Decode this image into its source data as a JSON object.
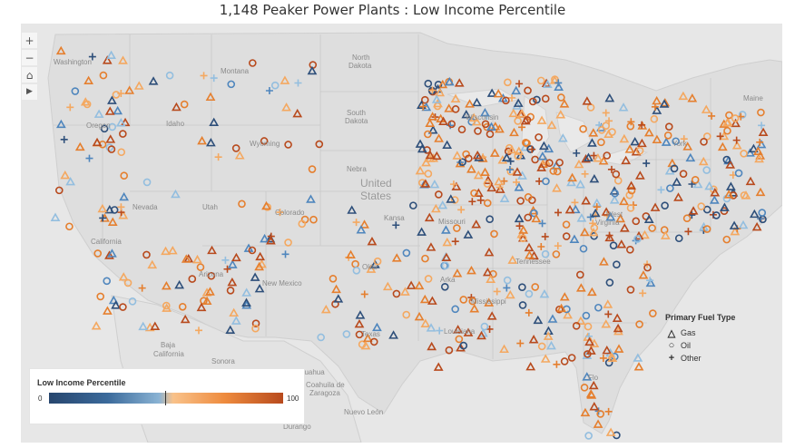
{
  "title": "1,148 Peaker Power Plants : Low Income Percentile",
  "map_controls": [
    {
      "name": "zoom-in-button",
      "symbol": "+"
    },
    {
      "name": "zoom-out-button",
      "symbol": "−"
    },
    {
      "name": "home-button",
      "symbol": "⌂"
    },
    {
      "name": "pan-button",
      "symbol": "▶"
    }
  ],
  "place_labels": {
    "washington": "Washington",
    "montana": "Montana",
    "north_dakota_1": "North",
    "north_dakota_2": "Dakota",
    "oregon": "Oregon",
    "idaho": "Idaho",
    "south_dakota_1": "South",
    "south_dakota_2": "Dakota",
    "wyoming": "Wyoming",
    "nebraska": "Nebra",
    "united_states_1": "United",
    "united_states_2": "States",
    "nevada": "Nevada",
    "utah": "Utah",
    "colorado": "Colorado",
    "california": "California",
    "arizona": "Arizona",
    "new_mexico": "New Mexico",
    "texas": "Texas",
    "oklahoma": "Okla",
    "kansas": "Kansa",
    "missouri": "Missouri",
    "arkansas": "Arka",
    "mississippi": "Mississippi",
    "louisiana": "Louisiana",
    "tennessee": "Tennessee",
    "west_virginia_1": "West",
    "west_virginia_2": "Virginia",
    "wisconsin": "Wisconsin",
    "new_york": "York",
    "maine": "Maine",
    "florida": "Flo",
    "baja_california_1": "Baja",
    "baja_california_2": "California",
    "sonora": "Sonora",
    "chihuahua": "Chihuahua",
    "coahuila_1": "Coahuila de",
    "coahuila_2": "Zaragoza",
    "durango": "Durango",
    "nuevo_leon": "Nuevo León"
  },
  "fuel_legend": {
    "title": "Primary Fuel Type",
    "items": [
      {
        "symbol": "△",
        "label": "Gas"
      },
      {
        "symbol": "○",
        "label": "Oil"
      },
      {
        "symbol": "+",
        "label": "Other"
      }
    ]
  },
  "income_legend": {
    "title": "Low Income Percentile",
    "min_label": "0",
    "max_label": "100"
  },
  "colors": {
    "background": "#e7e7e7",
    "land": "#dedede",
    "border": "#c8c8c8",
    "dark_blue": "#2e4f7a",
    "mid_blue": "#4f86bd",
    "light_blue": "#93bedf",
    "light_orange": "#f4a860",
    "orange": "#e57f2e",
    "dark_orange": "#b84a1d"
  }
}
